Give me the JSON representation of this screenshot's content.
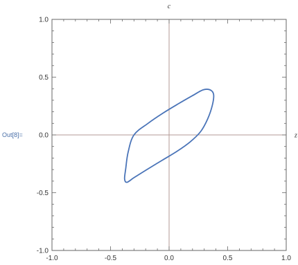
{
  "cell": {
    "output_label": "Out[8]="
  },
  "colors": {
    "curve": "#4a74b8",
    "axes": "#b39a94",
    "frame": "#666666"
  },
  "chart_data": {
    "type": "line",
    "title": "",
    "xlabel": "z",
    "ylabel": "c",
    "xlim": [
      -1.0,
      1.0
    ],
    "ylim": [
      -1.0,
      1.0
    ],
    "grid": false,
    "legend": "none",
    "x_ticks": [
      -1.0,
      -0.5,
      0.0,
      0.5,
      1.0
    ],
    "y_ticks": [
      -1.0,
      -0.5,
      0.0,
      0.5,
      1.0
    ],
    "x_tick_labels": [
      "-1.0",
      "-0.5",
      "0.0",
      "0.5",
      "1.0"
    ],
    "y_tick_labels": [
      "-1.0",
      "-0.5",
      "0.0",
      "0.5",
      "1.0"
    ],
    "series": [
      {
        "closed": true,
        "x": [
          -0.3,
          -0.18,
          -0.05,
          0.08,
          0.2,
          0.29,
          0.35,
          0.38,
          0.37,
          0.33,
          0.27,
          0.18,
          0.07,
          -0.06,
          -0.19,
          -0.3,
          -0.36,
          -0.38,
          -0.37,
          -0.35,
          -0.3
        ],
        "y": [
          0.0,
          0.1,
          0.19,
          0.27,
          0.34,
          0.39,
          0.39,
          0.35,
          0.26,
          0.14,
          0.03,
          -0.06,
          -0.14,
          -0.22,
          -0.3,
          -0.37,
          -0.41,
          -0.38,
          -0.29,
          -0.15,
          0.0
        ]
      }
    ]
  }
}
